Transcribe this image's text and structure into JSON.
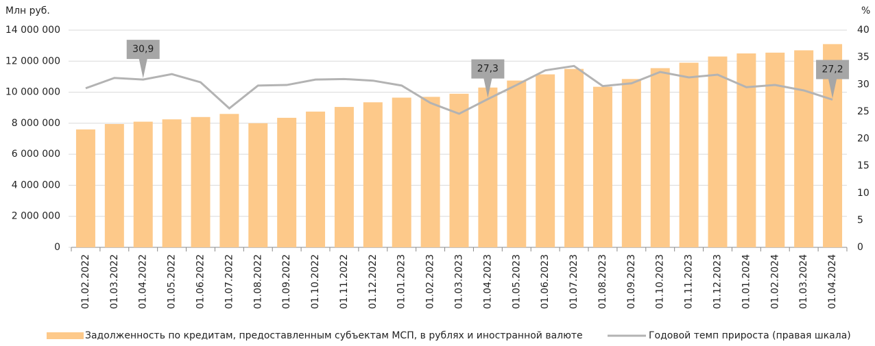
{
  "chart_data": {
    "type": "bar",
    "y_label": "Млн руб.",
    "y2_label": "%",
    "categories": [
      "01.02.2022",
      "01.03.2022",
      "01.04.2022",
      "01.05.2022",
      "01.06.2022",
      "01.07.2022",
      "01.08.2022",
      "01.09.2022",
      "01.10.2022",
      "01.11.2022",
      "01.12.2022",
      "01.01.2023",
      "01.02.2023",
      "01.03.2023",
      "01.04.2023",
      "01.05.2023",
      "01.06.2023",
      "01.07.2023",
      "01.08.2023",
      "01.09.2023",
      "01.10.2023",
      "01.11.2023",
      "01.12.2023",
      "01.01.2024",
      "01.02.2024",
      "01.03.2024",
      "01.04.2024"
    ],
    "series": [
      {
        "name": "Задолженность по кредитам, предоставленным субъектам МСП, в рублях и иностранной валюте",
        "type": "bar",
        "color": "#fdc98a",
        "values": [
          7600000,
          7950000,
          8100000,
          8250000,
          8400000,
          8600000,
          8000000,
          8350000,
          8750000,
          9050000,
          9350000,
          9650000,
          9700000,
          9900000,
          10300000,
          10750000,
          11150000,
          11500000,
          10350000,
          10850000,
          11550000,
          11900000,
          12300000,
          12500000,
          12550000,
          12700000,
          13100000
        ]
      },
      {
        "name": "Годовой темп прироста (правая шкала)",
        "type": "line",
        "axis": "y2",
        "color": "#b3b3b3",
        "values": [
          29.3,
          31.2,
          30.9,
          31.9,
          30.4,
          25.6,
          29.8,
          29.9,
          30.9,
          31.0,
          30.7,
          29.8,
          26.6,
          24.6,
          27.3,
          29.9,
          32.6,
          33.4,
          29.7,
          30.2,
          32.3,
          31.3,
          31.8,
          29.5,
          29.9,
          28.9,
          27.2
        ],
        "value_labels": [
          null,
          null,
          "30,9",
          null,
          null,
          null,
          null,
          null,
          null,
          null,
          null,
          null,
          null,
          null,
          "27,3",
          null,
          null,
          null,
          null,
          null,
          null,
          null,
          null,
          null,
          null,
          null,
          "27,2"
        ]
      }
    ],
    "ylim": [
      0,
      14000000
    ],
    "yticks": [
      0,
      {
        "value": 2000000,
        "label": "2 000 000"
      },
      {
        "value": 4000000,
        "label": "4 000 000"
      },
      {
        "value": 6000000,
        "label": "6 000 000"
      },
      {
        "value": 8000000,
        "label": "8 000 000"
      },
      {
        "value": 10000000,
        "label": "10 000 000"
      },
      {
        "value": 12000000,
        "label": "12 000 000"
      },
      {
        "value": 14000000,
        "label": "14 000 000"
      }
    ],
    "y2lim": [
      0,
      40
    ],
    "y2ticks": [
      0,
      5,
      10,
      15,
      20,
      25,
      30,
      35,
      40
    ],
    "grid": true,
    "legend": "bottom"
  }
}
